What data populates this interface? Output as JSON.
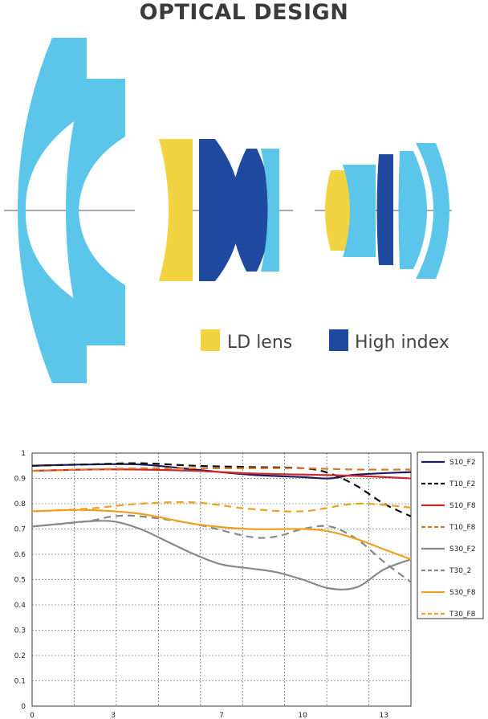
{
  "title": "OPTICAL DESIGN",
  "colors": {
    "lens_standard": "#5bc6ea",
    "ld_lens": "#f2d342",
    "high_index": "#1f4aa0",
    "axis_line": "#555555"
  },
  "lens_legend": [
    {
      "label": "LD lens",
      "color": "#f2d342"
    },
    {
      "label": "High index",
      "color": "#1f4aa0"
    }
  ],
  "chart_data": {
    "type": "line",
    "title": "",
    "xlabel": "",
    "ylabel": "",
    "xlim": [
      0,
      14
    ],
    "ylim": [
      0,
      1
    ],
    "x_ticks_shown": [
      0,
      3,
      7,
      10,
      13
    ],
    "y_ticks": [
      0,
      0.1,
      0.2,
      0.3,
      0.4,
      0.5,
      0.6,
      0.7,
      0.8,
      0.9,
      1
    ],
    "grid": true,
    "legend_position": "right",
    "series": [
      {
        "name": "S10_F2",
        "color": "#1a1a5e",
        "dash": false,
        "x": [
          0,
          2,
          4,
          6,
          8,
          10,
          11,
          12,
          14
        ],
        "y": [
          0.95,
          0.955,
          0.955,
          0.935,
          0.915,
          0.905,
          0.9,
          0.915,
          0.925
        ]
      },
      {
        "name": "T10_F2",
        "color": "#111111",
        "dash": true,
        "x": [
          0,
          2,
          4,
          6,
          8,
          10,
          11,
          12,
          13,
          14
        ],
        "y": [
          0.95,
          0.955,
          0.96,
          0.95,
          0.945,
          0.94,
          0.92,
          0.87,
          0.8,
          0.75
        ]
      },
      {
        "name": "S10_F8",
        "color": "#cc2a2a",
        "dash": false,
        "x": [
          0,
          2,
          4,
          6,
          8,
          10,
          12,
          14
        ],
        "y": [
          0.93,
          0.935,
          0.935,
          0.93,
          0.92,
          0.915,
          0.91,
          0.9
        ]
      },
      {
        "name": "T10_F8",
        "color": "#d97b2a",
        "dash": true,
        "x": [
          0,
          2,
          4,
          6,
          8,
          10,
          12,
          14
        ],
        "y": [
          0.93,
          0.935,
          0.94,
          0.94,
          0.94,
          0.94,
          0.935,
          0.935
        ]
      },
      {
        "name": "S30_F2",
        "color": "#888888",
        "dash": false,
        "x": [
          0,
          1,
          2,
          3,
          4,
          5,
          6,
          7,
          8,
          9,
          10,
          11,
          12,
          13,
          14
        ],
        "y": [
          0.71,
          0.72,
          0.73,
          0.73,
          0.7,
          0.65,
          0.6,
          0.56,
          0.545,
          0.53,
          0.5,
          0.465,
          0.47,
          0.54,
          0.58
        ]
      },
      {
        "name": "T30_2",
        "color": "#888888",
        "dash": true,
        "x": [
          0,
          2,
          3,
          4,
          6,
          8,
          9,
          10,
          11,
          12,
          13,
          14
        ],
        "y": [
          0.71,
          0.73,
          0.75,
          0.75,
          0.72,
          0.67,
          0.67,
          0.7,
          0.71,
          0.66,
          0.57,
          0.49
        ]
      },
      {
        "name": "S30_F8",
        "color": "#f0a020",
        "dash": false,
        "x": [
          0,
          2,
          4,
          6,
          8,
          10,
          11,
          12,
          13,
          14
        ],
        "y": [
          0.77,
          0.775,
          0.76,
          0.72,
          0.7,
          0.7,
          0.69,
          0.66,
          0.62,
          0.58
        ]
      },
      {
        "name": "T30_F8",
        "color": "#f0a020",
        "dash": true,
        "x": [
          0,
          2,
          4,
          6,
          8,
          10,
          12,
          14
        ],
        "y": [
          0.77,
          0.78,
          0.8,
          0.805,
          0.78,
          0.77,
          0.8,
          0.785
        ]
      }
    ]
  }
}
